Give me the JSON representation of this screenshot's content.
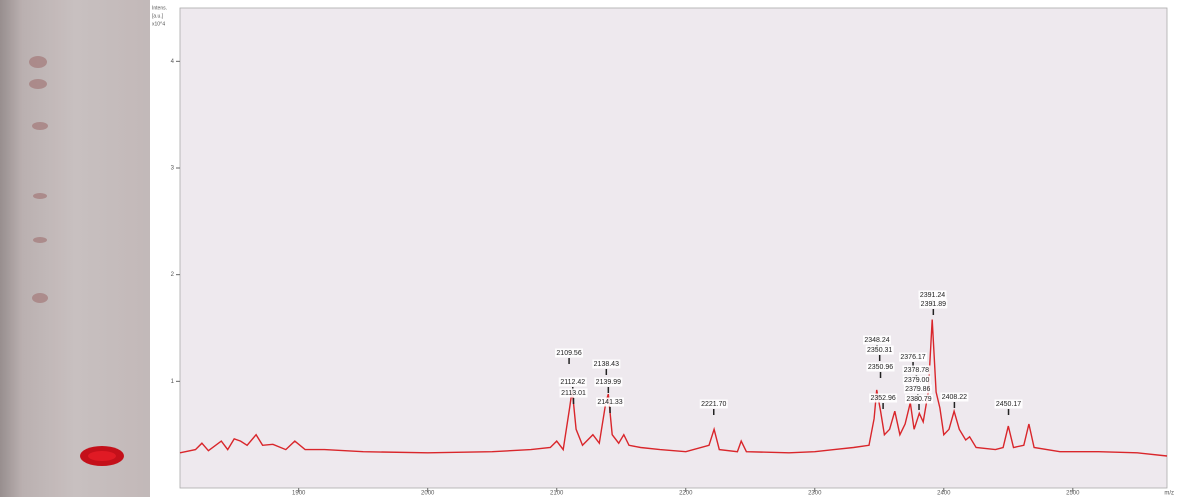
{
  "chart_data": {
    "type": "line",
    "y_label_lines": [
      "Intens.",
      "[a.u.]",
      "x10^4"
    ],
    "x_label": "m/z",
    "x": [
      1808,
      1820,
      1825,
      1830,
      1840,
      1845,
      1850,
      1855,
      1860,
      1867,
      1872,
      1880,
      1890,
      1897,
      1905,
      1920,
      1950,
      2000,
      2050,
      2080,
      2095,
      2100,
      2105,
      2110,
      2112,
      2115,
      2120,
      2128,
      2133,
      2138,
      2140,
      2143,
      2148,
      2152,
      2156,
      2165,
      2180,
      2200,
      2218,
      2222,
      2226,
      2240,
      2243,
      2247,
      2280,
      2300,
      2315,
      2330,
      2342,
      2346,
      2348,
      2351,
      2354,
      2358,
      2362,
      2366,
      2370,
      2374,
      2377,
      2381,
      2384,
      2388,
      2391,
      2394,
      2397,
      2400,
      2404,
      2408,
      2412,
      2417,
      2420,
      2425,
      2440,
      2446,
      2450,
      2454,
      2462,
      2466,
      2470,
      2490,
      2520,
      2550,
      2573
    ],
    "series": [
      {
        "color": "#d9262b",
        "values": [
          0.33,
          0.36,
          0.42,
          0.35,
          0.44,
          0.36,
          0.46,
          0.44,
          0.4,
          0.5,
          0.4,
          0.41,
          0.36,
          0.44,
          0.36,
          0.36,
          0.34,
          0.33,
          0.34,
          0.36,
          0.38,
          0.44,
          0.36,
          0.75,
          0.92,
          0.55,
          0.4,
          0.5,
          0.42,
          0.8,
          0.88,
          0.5,
          0.42,
          0.5,
          0.4,
          0.38,
          0.36,
          0.34,
          0.4,
          0.55,
          0.36,
          0.34,
          0.44,
          0.34,
          0.33,
          0.34,
          0.36,
          0.38,
          0.4,
          0.65,
          0.92,
          0.72,
          0.5,
          0.55,
          0.72,
          0.5,
          0.6,
          0.8,
          0.55,
          0.7,
          0.62,
          0.9,
          1.58,
          0.9,
          0.75,
          0.5,
          0.55,
          0.72,
          0.55,
          0.45,
          0.48,
          0.38,
          0.36,
          0.38,
          0.58,
          0.38,
          0.4,
          0.6,
          0.38,
          0.34,
          0.34,
          0.33,
          0.3
        ]
      }
    ],
    "xlim": [
      1808,
      2573
    ],
    "ylim": [
      0,
      4.5
    ],
    "xticks": [
      1900,
      2000,
      2100,
      2200,
      2300,
      2400,
      2500
    ],
    "yticks": [
      1,
      2,
      3,
      4
    ],
    "annotations": [
      {
        "text": "2109.56",
        "x": 2109.56
      },
      {
        "text": "2112.42",
        "x": 2112.42
      },
      {
        "text": "2113.01",
        "x": 2113.01
      },
      {
        "text": "2138.43",
        "x": 2138.43
      },
      {
        "text": "2139.99",
        "x": 2139.99
      },
      {
        "text": "2141.33",
        "x": 2141.33
      },
      {
        "text": "2221.70",
        "x": 2221.7
      },
      {
        "text": "2348.24",
        "x": 2348.24
      },
      {
        "text": "2350.31",
        "x": 2350.31
      },
      {
        "text": "2350.96",
        "x": 2350.96
      },
      {
        "text": "2352.96",
        "x": 2352.96
      },
      {
        "text": "2376.17",
        "x": 2376.17
      },
      {
        "text": "2378.78",
        "x": 2378.78
      },
      {
        "text": "2379.00",
        "x": 2379.0
      },
      {
        "text": "2379.86",
        "x": 2379.86
      },
      {
        "text": "2380.79",
        "x": 2380.79
      },
      {
        "text": "2391.24",
        "x": 2391.24
      },
      {
        "text": "2391.89",
        "x": 2391.89
      },
      {
        "text": "2408.22",
        "x": 2408.22
      },
      {
        "text": "2450.17",
        "x": 2450.17
      }
    ]
  }
}
